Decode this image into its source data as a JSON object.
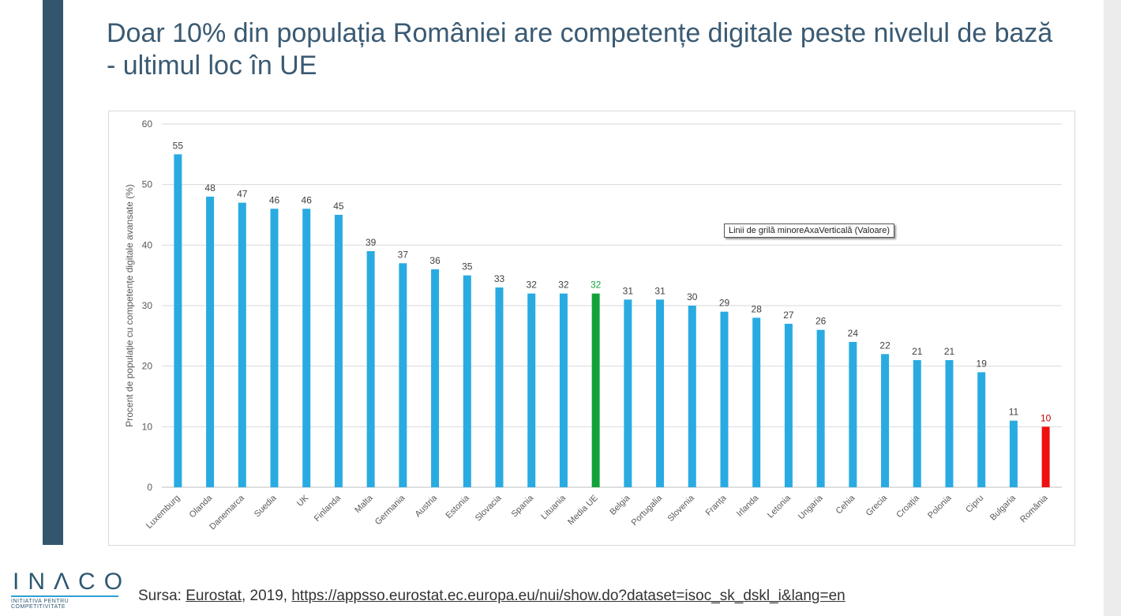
{
  "slide": {
    "title": "Doar 10% din populația României are competențe digitale peste nivelul de bază - ultimul loc în UE",
    "tooltip": "Linii de grilă minoreAxaVerticală (Valoare)",
    "source_prefix": "Sursa: ",
    "source_name": "Eurostat",
    "source_year": ", 2019, ",
    "source_url": "https://appsso.eurostat.ec.europa.eu/nui/show.do?dataset=isoc_sk_dskl_i&lang=en",
    "logo_word": "INΛCO",
    "logo_subtitle": "INITIATIVA PENTRU COMPETITIVITATE"
  },
  "colors": {
    "default_bar": "#29abe2",
    "eu_average_bar": "#11a33a",
    "romania_bar": "#ee1111",
    "title": "#3a5a73",
    "sidebar": "#33566e"
  },
  "chart_data": {
    "type": "bar",
    "ylabel": "Procent de populație cu competențe digitale avansate (%)",
    "xlabel": "",
    "ylim": [
      0,
      60
    ],
    "yticks": [
      0,
      10,
      20,
      30,
      40,
      50,
      60
    ],
    "grid": true,
    "categories": [
      "Luxemburg",
      "Olanda",
      "Danemarca",
      "Suedia",
      "UK",
      "Finlanda",
      "Malta",
      "Germania",
      "Austria",
      "Estonia",
      "Slovacia",
      "Spania",
      "Lituania",
      "Media UE",
      "Belgia",
      "Portugalia",
      "Slovenia",
      "Franța",
      "Irlanda",
      "Letonia",
      "Ungaria",
      "Cehia",
      "Grecia",
      "Croația",
      "Polonia",
      "Cipru",
      "Bulgaria",
      "România"
    ],
    "values": [
      55,
      48,
      47,
      46,
      46,
      45,
      39,
      37,
      36,
      35,
      33,
      32,
      32,
      32,
      31,
      31,
      30,
      29,
      28,
      27,
      26,
      24,
      22,
      21,
      21,
      19,
      11,
      10
    ],
    "highlight": {
      "Media UE": "eu_average_bar",
      "România": "romania_bar"
    }
  }
}
